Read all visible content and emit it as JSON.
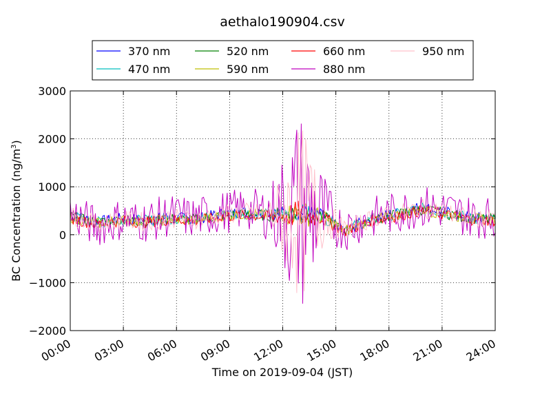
{
  "chart_data": {
    "type": "line",
    "title": "aethalo190904.csv",
    "xlabel": "Time on 2019-09-04 (JST)",
    "ylabel_main": "BC Concentration (ng/m",
    "ylabel_sup": "3",
    "ylabel_close": ")",
    "ylim": [
      -2000,
      3000
    ],
    "xlim_hours": [
      0,
      24
    ],
    "yticks": [
      -2000,
      -1000,
      0,
      1000,
      2000,
      3000
    ],
    "ytick_labels": [
      "−2000",
      "−1000",
      "0",
      "1000",
      "2000",
      "3000"
    ],
    "xtick_labels": [
      "00:00",
      "03:00",
      "06:00",
      "09:00",
      "12:00",
      "15:00",
      "18:00",
      "21:00",
      "24:00"
    ],
    "grid": true,
    "legend_position": "top-center",
    "series": [
      {
        "name": "370 nm",
        "color": "#0000ff",
        "y": [
          420,
          260,
          340,
          300,
          360,
          330,
          430,
          480,
          430,
          480,
          420,
          100,
          330,
          440,
          580,
          480,
          360,
          330
        ]
      },
      {
        "name": "470 nm",
        "color": "#00bfbf",
        "y": [
          400,
          250,
          320,
          290,
          340,
          320,
          410,
          450,
          410,
          460,
          410,
          100,
          320,
          420,
          550,
          460,
          350,
          320
        ]
      },
      {
        "name": "520 nm",
        "color": "#008000",
        "y": [
          380,
          240,
          310,
          280,
          330,
          310,
          400,
          440,
          400,
          450,
          400,
          90,
          310,
          410,
          530,
          450,
          340,
          310
        ]
      },
      {
        "name": "590 nm",
        "color": "#bfbf00",
        "y": [
          370,
          230,
          300,
          270,
          320,
          300,
          390,
          430,
          390,
          440,
          390,
          80,
          300,
          400,
          520,
          440,
          330,
          300
        ]
      },
      {
        "name": "660 nm",
        "color": "#ff0000",
        "y": [
          350,
          220,
          290,
          260,
          310,
          290,
          370,
          410,
          370,
          420,
          380,
          60,
          290,
          380,
          500,
          420,
          320,
          290
        ]
      },
      {
        "name": "880 nm",
        "color": "#bf00bf",
        "y": [
          450,
          180,
          320,
          280,
          400,
          350,
          460,
          530,
          450,
          500,
          430,
          120,
          350,
          450,
          600,
          520,
          380,
          350
        ]
      },
      {
        "name": "950 nm",
        "color": "#ffc0cb",
        "y": [
          400,
          230,
          310,
          270,
          350,
          320,
          420,
          470,
          410,
          460,
          420,
          100,
          320,
          420,
          560,
          470,
          350,
          320
        ]
      }
    ]
  }
}
